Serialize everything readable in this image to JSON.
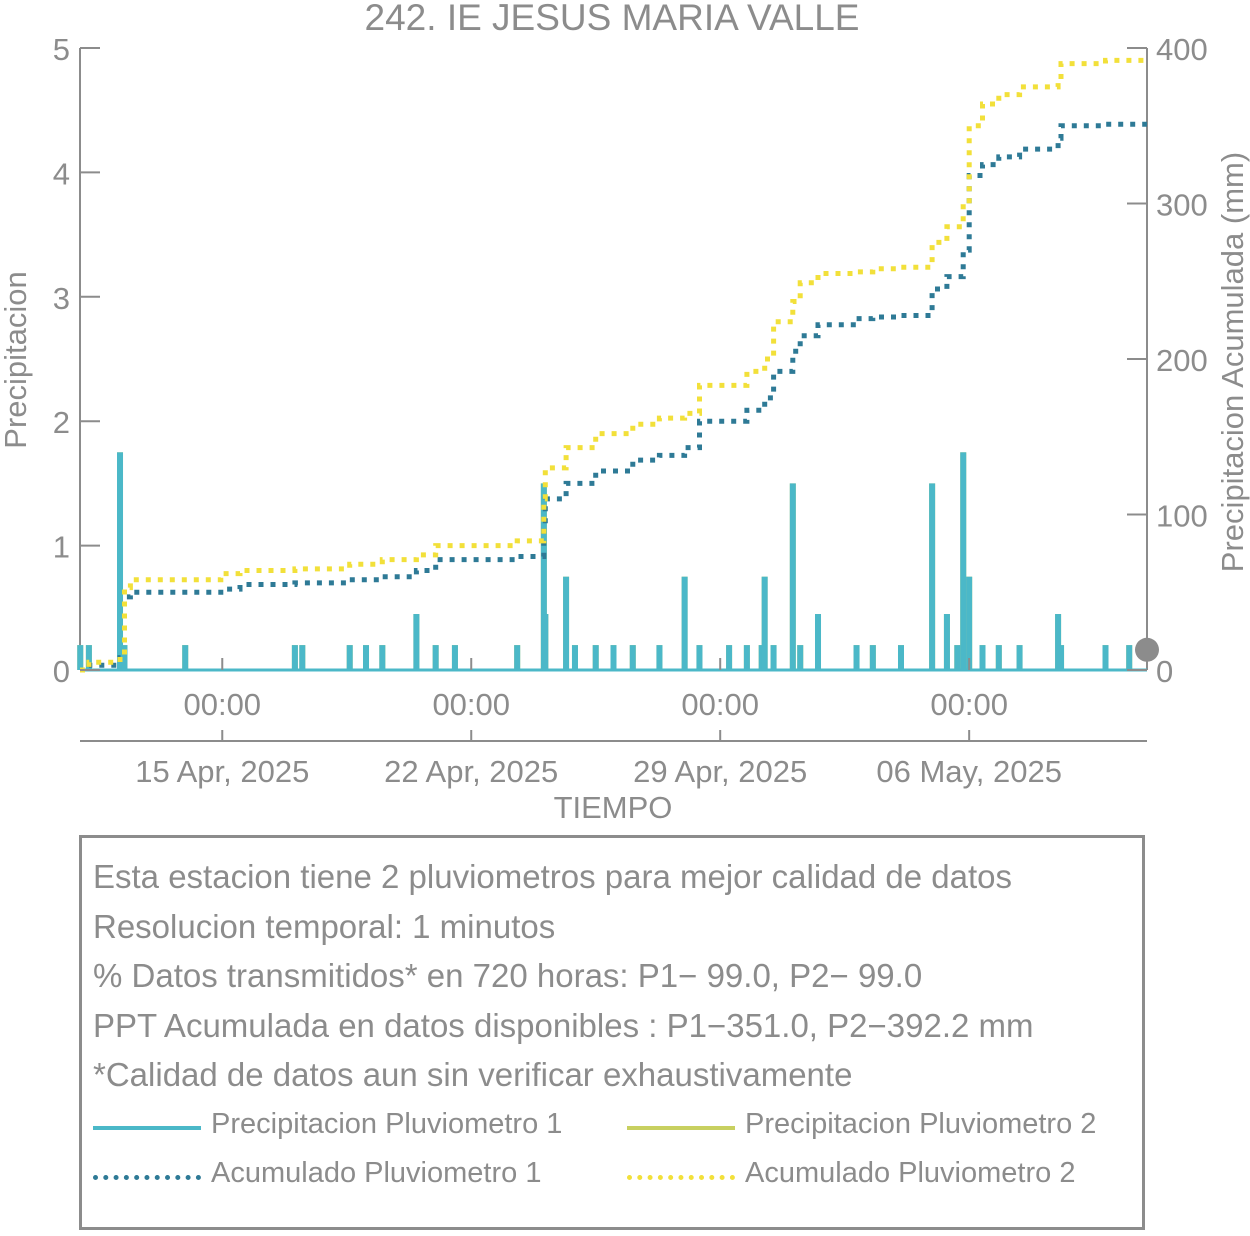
{
  "chart_data": {
    "type": "line",
    "title": "242. IE JESUS MARIA VALLE",
    "xlabel": "TIEMPO",
    "ylabel": "Precipitacion",
    "y2label": "Precipitacion Acumulada (mm)",
    "xlim": [
      "2025-04-11T00:00",
      "2025-05-11T00:00"
    ],
    "ylim": [
      0,
      5
    ],
    "y2lim": [
      0,
      400
    ],
    "yticks": [
      0,
      1,
      2,
      3,
      4,
      5
    ],
    "y2ticks": [
      0,
      100,
      200,
      300,
      400
    ],
    "x_time_ticks": [
      {
        "date": "2025-04-15T00:00",
        "label": "00:00"
      },
      {
        "date": "2025-04-22T00:00",
        "label": "00:00"
      },
      {
        "date": "2025-04-29T00:00",
        "label": "00:00"
      },
      {
        "date": "2025-05-06T00:00",
        "label": "00:00"
      }
    ],
    "x_date_labels": [
      {
        "date": "2025-04-15T00:00",
        "label": "15 Apr, 2025"
      },
      {
        "date": "2025-04-22T00:00",
        "label": "22 Apr, 2025"
      },
      {
        "date": "2025-04-29T00:00",
        "label": "29 Apr, 2025"
      },
      {
        "date": "2025-05-06T00:00",
        "label": "06 May, 2025"
      }
    ],
    "grid": false,
    "series": [
      {
        "name": "Precipitacion Pluviometro 1",
        "axis": "left",
        "style": "bars",
        "color": "#4bb8c8",
        "points": [
          [
            "2025-04-11T00:10",
            0.2
          ],
          [
            "2025-04-11T06:00",
            0.2
          ],
          [
            "2025-04-12T03:00",
            1.75
          ],
          [
            "2025-04-12T06:00",
            0.2
          ],
          [
            "2025-04-13T23:00",
            0.2
          ],
          [
            "2025-04-17T01:00",
            0.2
          ],
          [
            "2025-04-17T06:00",
            0.2
          ],
          [
            "2025-04-18T14:00",
            0.2
          ],
          [
            "2025-04-19T01:00",
            0.2
          ],
          [
            "2025-04-19T12:00",
            0.2
          ],
          [
            "2025-04-20T11:00",
            0.45
          ],
          [
            "2025-04-21T00:00",
            0.2
          ],
          [
            "2025-04-21T13:00",
            0.2
          ],
          [
            "2025-04-23T07:00",
            0.2
          ],
          [
            "2025-04-24T01:00",
            1.5
          ],
          [
            "2025-04-24T02:00",
            0.45
          ],
          [
            "2025-04-24T16:00",
            0.75
          ],
          [
            "2025-04-24T22:00",
            0.2
          ],
          [
            "2025-04-25T12:00",
            0.2
          ],
          [
            "2025-04-26T00:00",
            0.2
          ],
          [
            "2025-04-26T13:00",
            0.2
          ],
          [
            "2025-04-27T07:00",
            0.2
          ],
          [
            "2025-04-28T00:00",
            0.75
          ],
          [
            "2025-04-28T10:00",
            0.2
          ],
          [
            "2025-04-29T06:00",
            0.2
          ],
          [
            "2025-04-29T18:00",
            0.2
          ],
          [
            "2025-04-30T04:00",
            0.2
          ],
          [
            "2025-04-30T06:00",
            0.75
          ],
          [
            "2025-04-30T12:00",
            0.2
          ],
          [
            "2025-05-01T01:00",
            1.5
          ],
          [
            "2025-05-01T06:00",
            0.2
          ],
          [
            "2025-05-01T18:00",
            0.45
          ],
          [
            "2025-05-02T20:00",
            0.2
          ],
          [
            "2025-05-03T07:00",
            0.2
          ],
          [
            "2025-05-04T02:00",
            0.2
          ],
          [
            "2025-05-04T23:00",
            1.5
          ],
          [
            "2025-05-05T09:00",
            0.45
          ],
          [
            "2025-05-05T16:00",
            0.2
          ],
          [
            "2025-05-05T20:00",
            1.75
          ],
          [
            "2025-05-06T00:00",
            0.75
          ],
          [
            "2025-05-06T09:00",
            0.2
          ],
          [
            "2025-05-06T20:00",
            0.2
          ],
          [
            "2025-05-07T10:00",
            0.2
          ],
          [
            "2025-05-08T12:00",
            0.45
          ],
          [
            "2025-05-08T14:00",
            0.2
          ],
          [
            "2025-05-09T20:00",
            0.2
          ],
          [
            "2025-05-10T12:00",
            0.2
          ]
        ]
      },
      {
        "name": "Precipitacion Pluviometro 2",
        "axis": "left",
        "style": "bars",
        "color": "#c8d060",
        "points": [
          [
            "2025-04-11T00:10",
            0.2
          ],
          [
            "2025-04-11T06:00",
            0.2
          ],
          [
            "2025-04-12T03:00",
            1.75
          ],
          [
            "2025-04-12T06:00",
            0.2
          ],
          [
            "2025-04-13T23:00",
            0.2
          ],
          [
            "2025-04-17T01:00",
            0.2
          ],
          [
            "2025-04-17T06:00",
            0.2
          ],
          [
            "2025-04-18T14:00",
            0.2
          ],
          [
            "2025-04-19T01:00",
            0.2
          ],
          [
            "2025-04-19T12:00",
            0.2
          ],
          [
            "2025-04-20T11:00",
            0.45
          ],
          [
            "2025-04-21T00:00",
            0.2
          ],
          [
            "2025-04-21T13:00",
            0.2
          ],
          [
            "2025-04-23T07:00",
            0.2
          ],
          [
            "2025-04-24T01:00",
            1.5
          ],
          [
            "2025-04-24T02:00",
            0.45
          ],
          [
            "2025-04-24T16:00",
            0.75
          ],
          [
            "2025-04-24T22:00",
            0.2
          ],
          [
            "2025-04-25T12:00",
            0.2
          ],
          [
            "2025-04-26T00:00",
            0.2
          ],
          [
            "2025-04-26T13:00",
            0.2
          ],
          [
            "2025-04-27T07:00",
            0.2
          ],
          [
            "2025-04-28T00:00",
            0.75
          ],
          [
            "2025-04-28T10:00",
            0.2
          ],
          [
            "2025-04-29T06:00",
            0.2
          ],
          [
            "2025-04-29T18:00",
            0.2
          ],
          [
            "2025-04-30T04:00",
            0.2
          ],
          [
            "2025-04-30T06:00",
            0.75
          ],
          [
            "2025-04-30T12:00",
            0.2
          ],
          [
            "2025-05-01T01:00",
            1.5
          ],
          [
            "2025-05-01T06:00",
            0.2
          ],
          [
            "2025-05-01T18:00",
            0.45
          ],
          [
            "2025-05-02T20:00",
            0.2
          ],
          [
            "2025-05-03T07:00",
            0.2
          ],
          [
            "2025-05-04T02:00",
            0.2
          ],
          [
            "2025-05-04T23:00",
            1.5
          ],
          [
            "2025-05-05T09:00",
            0.45
          ],
          [
            "2025-05-05T16:00",
            0.2
          ],
          [
            "2025-05-05T20:00",
            1.75
          ],
          [
            "2025-05-06T00:00",
            0.75
          ],
          [
            "2025-05-06T09:00",
            0.2
          ],
          [
            "2025-05-06T20:00",
            0.2
          ],
          [
            "2025-05-07T10:00",
            0.2
          ],
          [
            "2025-05-08T12:00",
            0.45
          ],
          [
            "2025-05-08T14:00",
            0.2
          ],
          [
            "2025-05-09T20:00",
            0.2
          ],
          [
            "2025-05-10T12:00",
            0.2
          ]
        ]
      },
      {
        "name": "Acumulado Pluviometro 1",
        "axis": "right",
        "style": "dotted-step",
        "color": "#2e7a96",
        "points": [
          [
            "2025-04-11T00:00",
            0
          ],
          [
            "2025-04-11T06:00",
            3
          ],
          [
            "2025-04-12T03:00",
            8
          ],
          [
            "2025-04-12T06:00",
            47
          ],
          [
            "2025-04-12T10:00",
            50
          ],
          [
            "2025-04-14T23:00",
            52
          ],
          [
            "2025-04-15T12:00",
            55
          ],
          [
            "2025-04-17T01:00",
            56
          ],
          [
            "2025-04-18T14:00",
            58
          ],
          [
            "2025-04-19T12:00",
            60
          ],
          [
            "2025-04-20T11:00",
            64
          ],
          [
            "2025-04-21T00:00",
            71
          ],
          [
            "2025-04-23T07:00",
            73
          ],
          [
            "2025-04-24T01:00",
            92
          ],
          [
            "2025-04-24T02:00",
            110
          ],
          [
            "2025-04-24T16:00",
            120
          ],
          [
            "2025-04-25T12:00",
            128
          ],
          [
            "2025-04-26T13:00",
            135
          ],
          [
            "2025-04-27T07:00",
            138
          ],
          [
            "2025-04-28T00:00",
            143
          ],
          [
            "2025-04-28T10:00",
            160
          ],
          [
            "2025-04-29T18:00",
            167
          ],
          [
            "2025-04-30T06:00",
            175
          ],
          [
            "2025-04-30T12:00",
            192
          ],
          [
            "2025-05-01T01:00",
            205
          ],
          [
            "2025-05-01T06:00",
            215
          ],
          [
            "2025-05-01T18:00",
            222
          ],
          [
            "2025-05-02T20:00",
            226
          ],
          [
            "2025-05-03T07:00",
            227
          ],
          [
            "2025-05-04T02:00",
            228
          ],
          [
            "2025-05-04T23:00",
            245
          ],
          [
            "2025-05-05T09:00",
            253
          ],
          [
            "2025-05-05T20:00",
            270
          ],
          [
            "2025-05-06T00:00",
            318
          ],
          [
            "2025-05-06T09:00",
            325
          ],
          [
            "2025-05-06T20:00",
            330
          ],
          [
            "2025-05-07T10:00",
            335
          ],
          [
            "2025-05-08T12:00",
            342
          ],
          [
            "2025-05-08T14:00",
            350
          ],
          [
            "2025-05-09T20:00",
            351
          ],
          [
            "2025-05-11T00:00",
            351
          ]
        ]
      },
      {
        "name": "Acumulado Pluviometro 2",
        "axis": "right",
        "style": "dotted-step",
        "color": "#f2e03a",
        "points": [
          [
            "2025-04-11T00:00",
            0
          ],
          [
            "2025-04-11T06:00",
            5
          ],
          [
            "2025-04-12T03:00",
            10
          ],
          [
            "2025-04-12T06:00",
            53
          ],
          [
            "2025-04-12T10:00",
            58
          ],
          [
            "2025-04-14T23:00",
            62
          ],
          [
            "2025-04-15T12:00",
            64
          ],
          [
            "2025-04-17T01:00",
            65
          ],
          [
            "2025-04-18T14:00",
            68
          ],
          [
            "2025-04-19T12:00",
            71
          ],
          [
            "2025-04-20T11:00",
            74
          ],
          [
            "2025-04-21T00:00",
            80
          ],
          [
            "2025-04-23T07:00",
            83
          ],
          [
            "2025-04-24T01:00",
            110
          ],
          [
            "2025-04-24T02:00",
            130
          ],
          [
            "2025-04-24T16:00",
            143
          ],
          [
            "2025-04-25T12:00",
            152
          ],
          [
            "2025-04-26T13:00",
            158
          ],
          [
            "2025-04-27T07:00",
            162
          ],
          [
            "2025-04-28T00:00",
            165
          ],
          [
            "2025-04-28T10:00",
            183
          ],
          [
            "2025-04-29T18:00",
            192
          ],
          [
            "2025-04-30T06:00",
            200
          ],
          [
            "2025-04-30T12:00",
            224
          ],
          [
            "2025-05-01T01:00",
            237
          ],
          [
            "2025-05-01T06:00",
            249
          ],
          [
            "2025-05-01T18:00",
            255
          ],
          [
            "2025-05-02T20:00",
            256
          ],
          [
            "2025-05-03T07:00",
            258
          ],
          [
            "2025-05-04T02:00",
            259
          ],
          [
            "2025-05-04T23:00",
            275
          ],
          [
            "2025-05-05T09:00",
            285
          ],
          [
            "2025-05-05T20:00",
            300
          ],
          [
            "2025-05-06T00:00",
            350
          ],
          [
            "2025-05-06T09:00",
            364
          ],
          [
            "2025-05-06T20:00",
            370
          ],
          [
            "2025-05-07T10:00",
            375
          ],
          [
            "2025-05-08T12:00",
            380
          ],
          [
            "2025-05-08T14:00",
            390
          ],
          [
            "2025-05-09T20:00",
            392
          ],
          [
            "2025-05-11T00:00",
            392
          ]
        ]
      }
    ],
    "markers": [
      {
        "axis": "right",
        "date": "2025-05-11T00:00",
        "value": 13,
        "color": "#8c8c8c"
      }
    ]
  },
  "info": {
    "lines": [
      "Esta estacion tiene 2 pluviometros para mejor calidad de datos",
      "Resolucion temporal: 1 minutos",
      "% Datos transmitidos* en 720 horas: P1− 99.0, P2− 99.0",
      "PPT Acumulada en datos disponibles : P1−351.0, P2−392.2 mm",
      "*Calidad de datos aun sin verificar exhaustivamente"
    ],
    "legend": [
      {
        "label": "Precipitacion Pluviometro 1",
        "color": "#4bb8c8",
        "style": "solid"
      },
      {
        "label": "Precipitacion Pluviometro 2",
        "color": "#c8d060",
        "style": "solid"
      },
      {
        "label": "Acumulado Pluviometro 1",
        "color": "#2e7a96",
        "style": "dotted"
      },
      {
        "label": "Acumulado Pluviometro 2",
        "color": "#f2e03a",
        "style": "dotted"
      }
    ]
  }
}
